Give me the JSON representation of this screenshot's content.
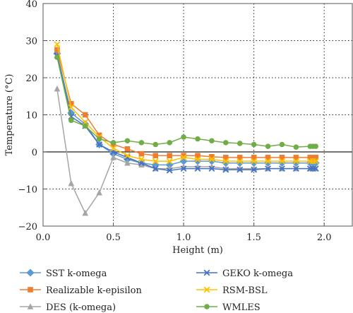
{
  "chart_data": {
    "type": "line",
    "title": "",
    "xlabel": "Height (m)",
    "ylabel": "Temperature (°C)",
    "xlim": [
      0,
      2.2
    ],
    "ylim": [
      -20,
      40
    ],
    "xticks": [
      "0.0",
      "0.5",
      "1.0",
      "1.5",
      "2.0"
    ],
    "yticks": [
      "−20",
      "−10",
      "0",
      "10",
      "20",
      "30",
      "40"
    ],
    "grid": "dotted vertical and horizontal",
    "legend_position": "bottom",
    "x": [
      0.1,
      0.2,
      0.3,
      0.4,
      0.5,
      0.6,
      0.7,
      0.8,
      0.9,
      1.0,
      1.1,
      1.2,
      1.3,
      1.4,
      1.5,
      1.6,
      1.7,
      1.8,
      1.9,
      1.92,
      1.94
    ],
    "series": [
      {
        "name": "SST k-omega",
        "color": "#5b9bd5",
        "marker": "diamond",
        "values": [
          26.5,
          10.5,
          7.5,
          2.0,
          -0.5,
          -2.0,
          -3.0,
          -3.5,
          -3.5,
          -2.5,
          -2.5,
          -2.5,
          -3.0,
          -3.0,
          -3.0,
          -3.0,
          -3.0,
          -3.0,
          -3.0,
          -3.0,
          -3.0
        ]
      },
      {
        "name": "Realizable k-episilon",
        "color": "#ed7d31",
        "marker": "square",
        "values": [
          27.5,
          13.0,
          10.0,
          4.5,
          2.0,
          0.8,
          -0.5,
          -1.0,
          -1.0,
          -1.0,
          -1.0,
          -1.3,
          -1.5,
          -1.5,
          -1.5,
          -1.5,
          -1.5,
          -1.5,
          -1.5,
          -1.5,
          -1.5
        ]
      },
      {
        "name": "DES (k-omega)",
        "color": "#a5a5a5",
        "marker": "triangle",
        "values": [
          17.0,
          -8.5,
          -16.5,
          -11.0,
          -1.5,
          -3.0,
          -3.5,
          -4.5,
          -4.5,
          -4.0,
          -4.0,
          -4.0,
          -4.5,
          -4.5,
          -4.5,
          -4.5,
          -4.5,
          -4.5,
          -4.5,
          -4.5,
          -4.5
        ]
      },
      {
        "name": "GEKO k-omega",
        "color": "#4472c4",
        "marker": "x",
        "values": [
          26.0,
          9.5,
          7.0,
          2.0,
          0.0,
          -1.5,
          -3.0,
          -4.5,
          -5.0,
          -4.5,
          -4.5,
          -4.5,
          -4.8,
          -4.8,
          -4.8,
          -4.5,
          -4.5,
          -4.5,
          -4.5,
          -4.5,
          -4.5
        ]
      },
      {
        "name": "RSM-BSL",
        "color": "#ffc000",
        "marker": "x",
        "values": [
          29.0,
          12.0,
          8.0,
          4.0,
          1.0,
          -1.0,
          -2.0,
          -2.5,
          -2.5,
          -1.5,
          -2.0,
          -2.0,
          -2.5,
          -2.5,
          -2.5,
          -2.5,
          -2.5,
          -2.5,
          -2.5,
          -2.5,
          -2.5
        ]
      },
      {
        "name": "WMLES",
        "color": "#70ad47",
        "marker": "circle",
        "values": [
          25.5,
          8.5,
          7.0,
          3.5,
          2.5,
          3.0,
          2.5,
          2.0,
          2.5,
          4.0,
          3.5,
          3.0,
          2.5,
          2.3,
          2.0,
          1.5,
          2.0,
          1.3,
          1.5,
          1.5,
          1.5
        ]
      }
    ]
  }
}
